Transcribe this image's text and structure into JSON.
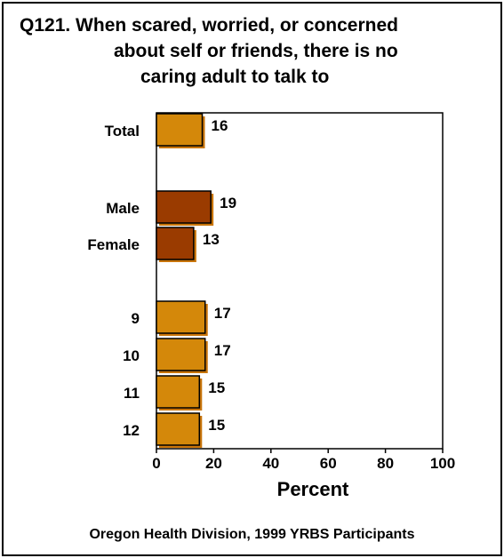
{
  "title": {
    "line1": "Q121. When scared, worried, or concerned",
    "line2": "about self or friends, there is no",
    "line3": "caring adult to talk to"
  },
  "footer": {
    "source": "Oregon Health Division, 1999 YRBS Participants"
  },
  "colors": {
    "gold": "#D4880A",
    "maroon": "#9A3B00",
    "shadow": "#C9750A",
    "text": "#000000"
  },
  "chart_data": {
    "type": "bar",
    "orientation": "horizontal",
    "categories": [
      "Total",
      "Male",
      "Female",
      "9",
      "10",
      "11",
      "12"
    ],
    "values": [
      16,
      19,
      13,
      17,
      17,
      15,
      15
    ],
    "bar_colors": [
      "gold",
      "maroon",
      "maroon",
      "gold",
      "gold",
      "gold",
      "gold"
    ],
    "xlabel": "Percent",
    "xlim": [
      0,
      100
    ],
    "xticks": [
      0,
      20,
      40,
      60,
      80,
      100
    ],
    "data_labels": true,
    "grid": false,
    "legend": "none"
  }
}
